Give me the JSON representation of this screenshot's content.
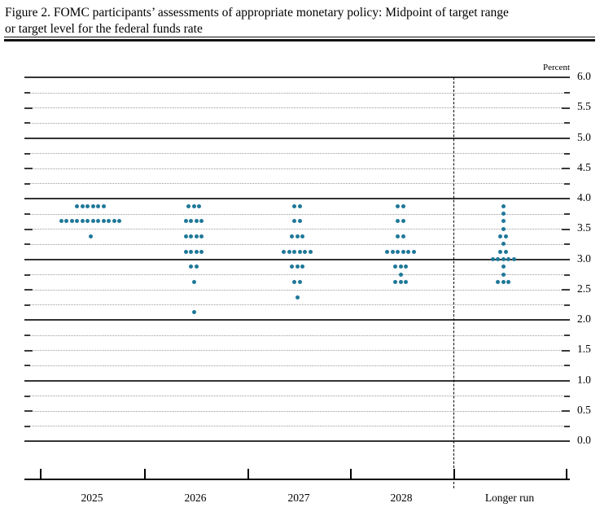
{
  "figure": {
    "title_line1": "Figure 2. FOMC participants’ assessments of appropriate monetary policy: Midpoint of target range",
    "title_line2": "or target level for the federal funds rate"
  },
  "chart_data": {
    "type": "scatter",
    "subtype": "fomc-dot-plot",
    "title": "FOMC participants’ assessments of appropriate monetary policy: Midpoint of target range or target level for the federal funds rate",
    "unit_label": "Percent",
    "categories": [
      "2025",
      "2026",
      "2027",
      "2028",
      "Longer run"
    ],
    "y_axis": {
      "min": 0.0,
      "max": 6.0,
      "grid_step": 0.25,
      "label_step": 0.5,
      "solid_line_step": 1.0,
      "tick_labels": [
        "6.0",
        "5.5",
        "5.0",
        "4.5",
        "4.0",
        "3.5",
        "3.0",
        "2.5",
        "2.0",
        "1.5",
        "1.0",
        "0.5",
        "0.0"
      ]
    },
    "legend": "none",
    "grid": "dotted quarter-point lines, solid integer lines",
    "separator": "dashed vertical line between 2028 and Longer run",
    "dot_color": "#1f7899",
    "dot_counts": [
      {
        "category": "2025",
        "dots": {
          "3.875": 6,
          "3.625": 12,
          "3.375": 1
        }
      },
      {
        "category": "2026",
        "dots": {
          "3.875": 3,
          "3.625": 4,
          "3.375": 4,
          "3.125": 4,
          "2.875": 2,
          "2.625": 1,
          "2.125": 1
        }
      },
      {
        "category": "2027",
        "dots": {
          "3.875": 2,
          "3.625": 2,
          "3.375": 3,
          "3.125": 6,
          "2.875": 3,
          "2.625": 2,
          "2.375": 1
        }
      },
      {
        "category": "2028",
        "dots": {
          "3.875": 2,
          "3.625": 2,
          "3.375": 2,
          "3.125": 6,
          "2.875": 3,
          "2.75": 1,
          "2.625": 3
        }
      },
      {
        "category": "Longer run",
        "dots": {
          "3.875": 1,
          "3.75": 1,
          "3.625": 1,
          "3.5": 1,
          "3.375": 2,
          "3.25": 1,
          "3.125": 2,
          "3.0": 5,
          "2.875": 1,
          "2.75": 1,
          "2.625": 3
        }
      }
    ]
  }
}
